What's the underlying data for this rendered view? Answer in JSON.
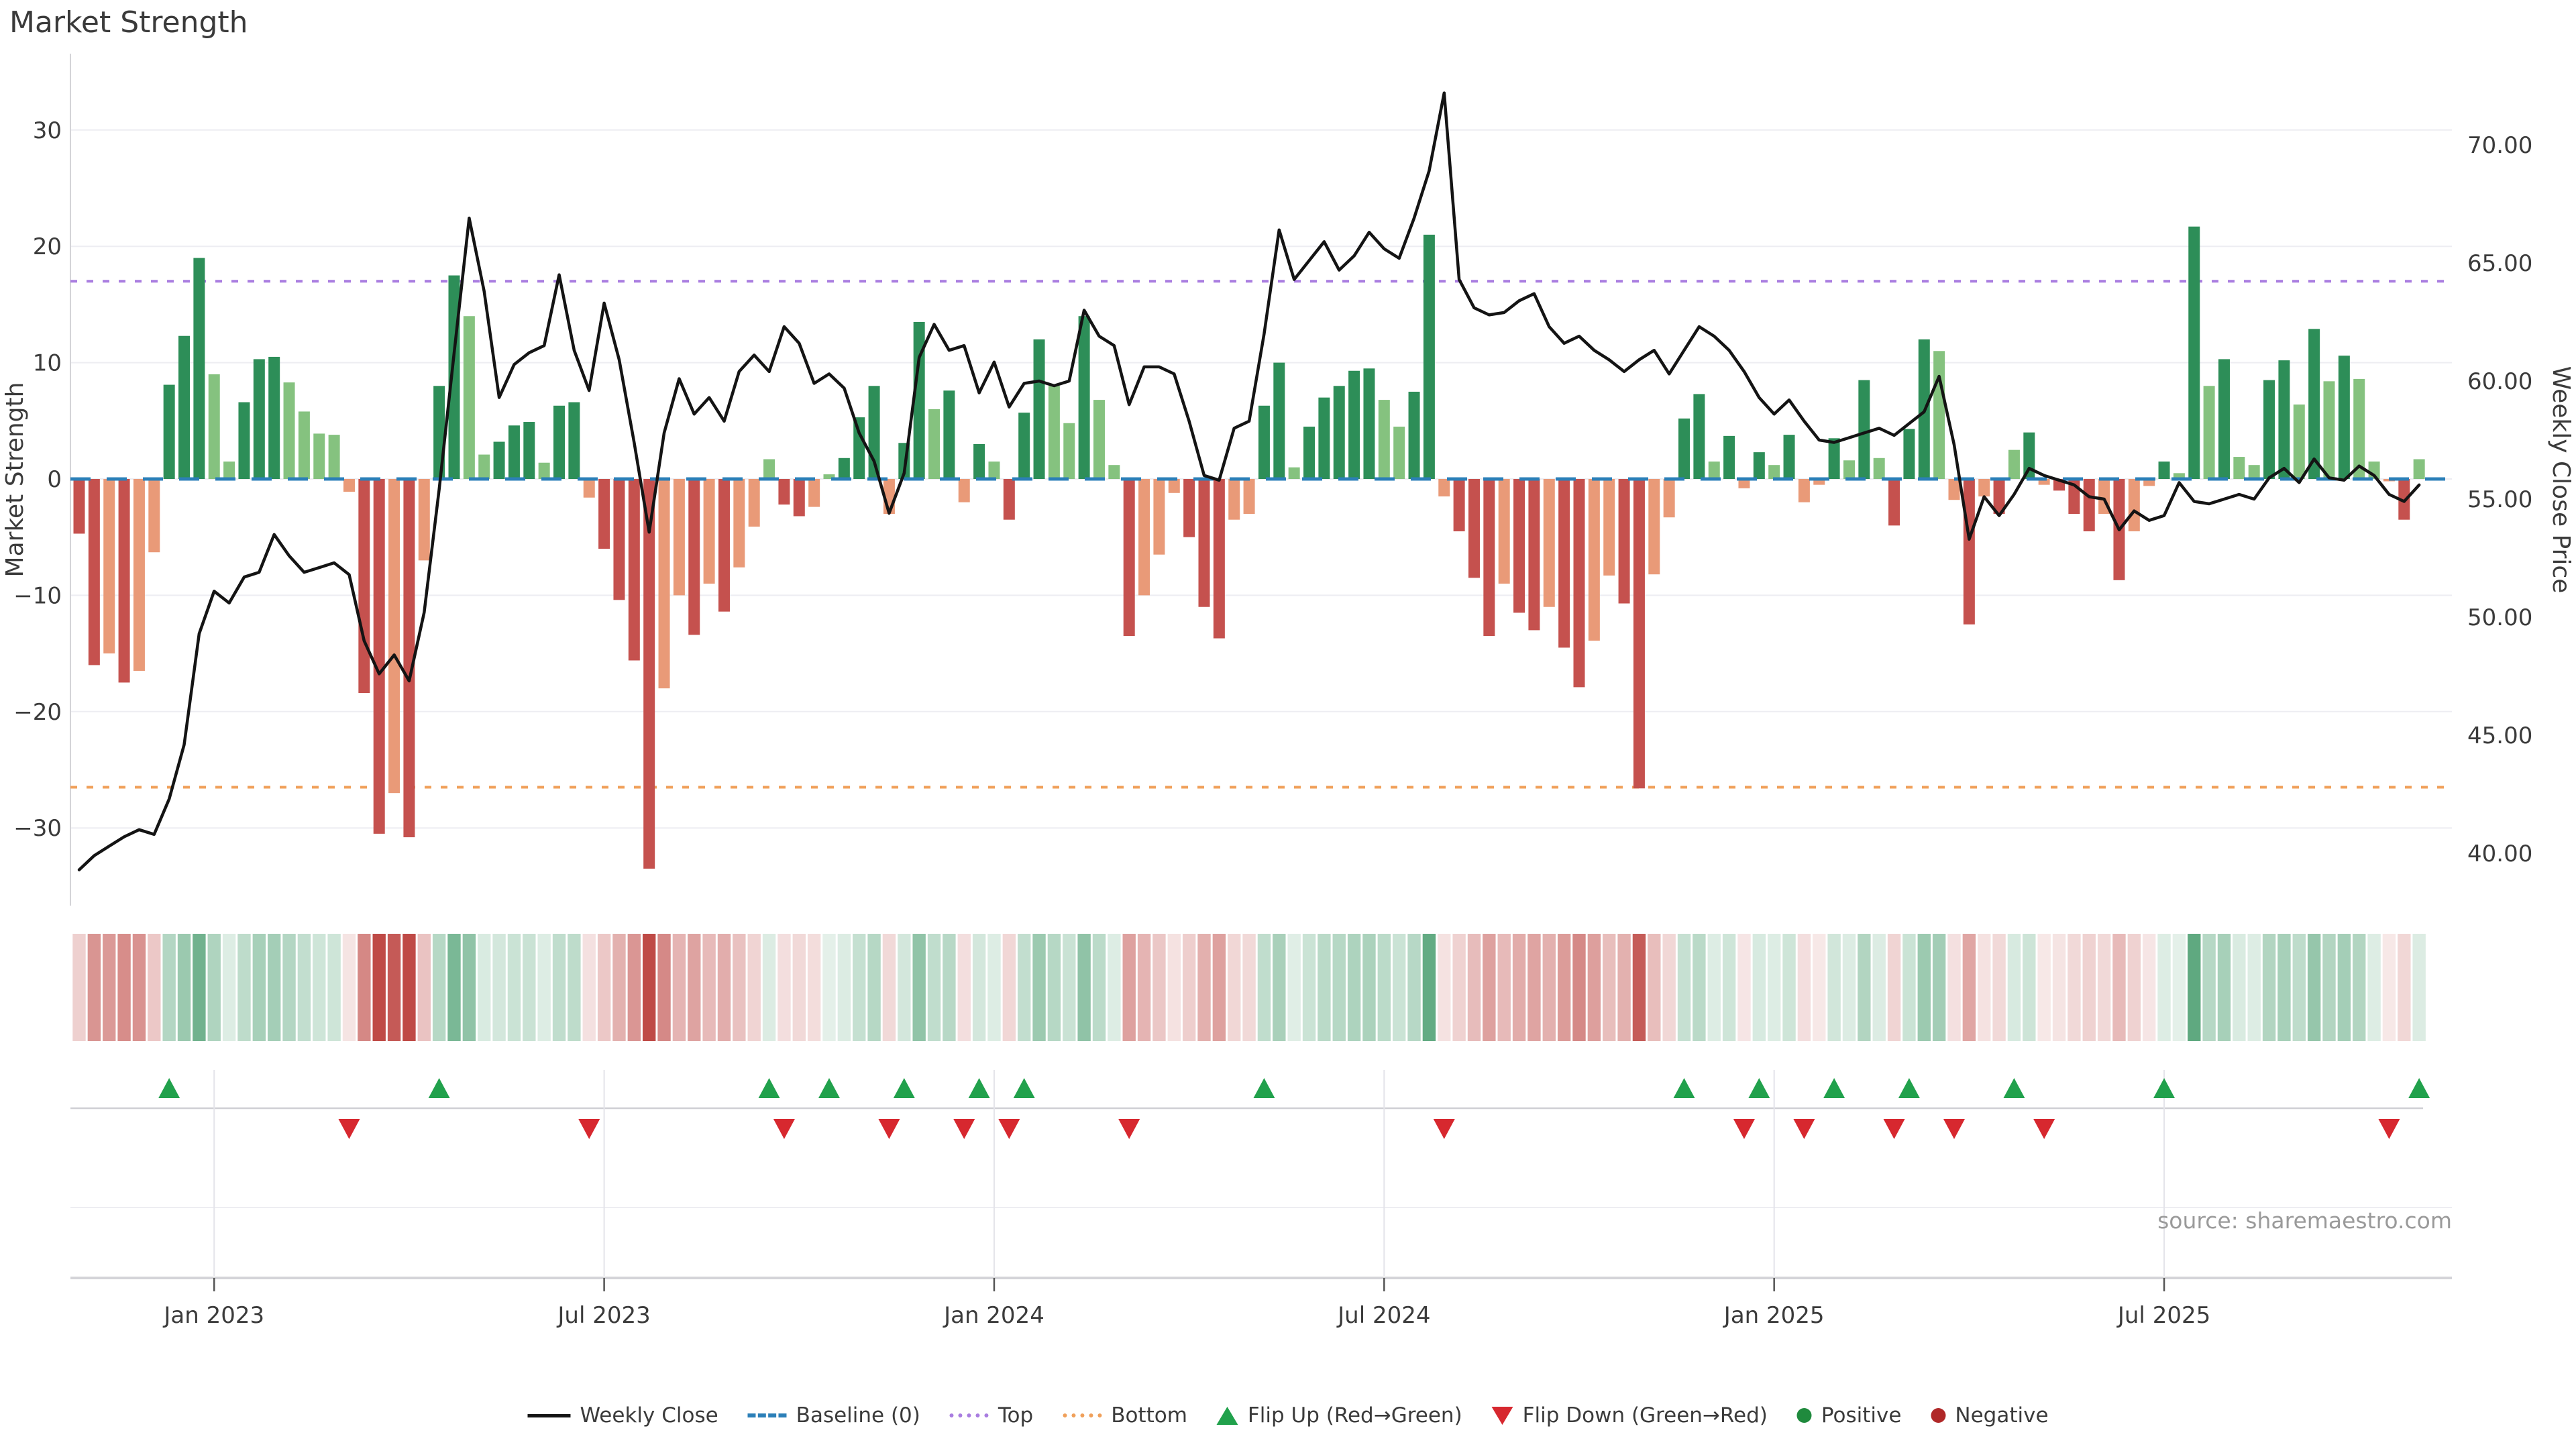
{
  "title": "Market Strength",
  "source": "source: sharemaestro.com",
  "legend": {
    "items": [
      {
        "label": "Weekly Close",
        "swatch": "line",
        "color": "#141414"
      },
      {
        "label": "Baseline (0)",
        "swatch": "dash",
        "color": "#2b7fb8"
      },
      {
        "label": "Top",
        "swatch": "dot-purple",
        "color": "#a97de0"
      },
      {
        "label": "Bottom",
        "swatch": "dot-orange",
        "color": "#f0a05a"
      },
      {
        "label": "Flip Up (Red→Green)",
        "swatch": "tri-up",
        "color": "#21a14c"
      },
      {
        "label": "Flip Down (Green→Red)",
        "swatch": "tri-down",
        "color": "#d7282f"
      },
      {
        "label": "Positive",
        "swatch": "dot-green",
        "color": "#1f8a3d"
      },
      {
        "label": "Negative",
        "swatch": "dot-red",
        "color": "#b02828"
      }
    ]
  },
  "axes": {
    "left": {
      "label": "Market Strength",
      "ticks": [
        {
          "v": 30,
          "label": "30"
        },
        {
          "v": 20,
          "label": "20"
        },
        {
          "v": 10,
          "label": "10"
        },
        {
          "v": 0,
          "label": "0"
        },
        {
          "v": -10,
          "label": "−10"
        },
        {
          "v": -20,
          "label": "−20"
        },
        {
          "v": -30,
          "label": "−30"
        }
      ],
      "range": [
        -36,
        37
      ]
    },
    "right": {
      "label": "Weekly Close Price",
      "ticks": [
        {
          "v": 70,
          "label": "70.00"
        },
        {
          "v": 65,
          "label": "65.00"
        },
        {
          "v": 60,
          "label": "60.00"
        },
        {
          "v": 55,
          "label": "55.00"
        },
        {
          "v": 50,
          "label": "50.00"
        },
        {
          "v": 45,
          "label": "45.00"
        },
        {
          "v": 40,
          "label": "40.00"
        }
      ],
      "range": [
        38.5,
        73.5
      ]
    },
    "x": {
      "ticks": [
        {
          "week": 9,
          "label": "Jan 2023"
        },
        {
          "week": 35,
          "label": "Jul 2023"
        },
        {
          "week": 61,
          "label": "Jan 2024"
        },
        {
          "week": 87,
          "label": "Jul 2024"
        },
        {
          "week": 113,
          "label": "Jan 2025"
        },
        {
          "week": 139,
          "label": "Jul 2025"
        }
      ]
    }
  },
  "colors": {
    "line": "#141414",
    "baseline": "#2b7fb8",
    "top": "#a97de0",
    "bottom": "#f0a05a",
    "flip_up": "#21a14c",
    "flip_down": "#d7282f",
    "positive_dot": "#1f8a3d",
    "negative_dot": "#b02828",
    "bar_pos_strong": "#2d8e58",
    "bar_pos_weak": "#85c27f",
    "bar_neg_strong": "#c5514e",
    "bar_neg_weak": "#e99a78",
    "heat_pos": "#2d8e58",
    "heat_neg": "#bf4a46",
    "grid": "#ededf2",
    "axis": "#d4d4d8",
    "text": "#3b3b3b"
  },
  "chart_data": {
    "type": [
      "bar",
      "line",
      "heatmap"
    ],
    "title": "Market Strength",
    "frequency": "weekly",
    "start_week": "2022-10-31",
    "baseline": 0,
    "top": 17,
    "bottom": -26.5,
    "bar_shade_rule": "dark shade when |value| > |previous value|, light shade otherwise",
    "flip_rule": "flip-up marker where strength crosses from negative to positive; flip-down where it crosses from positive to negative",
    "series": [
      {
        "name": "Market Strength",
        "axis": "left",
        "type": "bar",
        "values": [
          -4.7,
          -16,
          -15,
          -17.5,
          -16.5,
          -6.3,
          8.1,
          12.3,
          19,
          9,
          1.5,
          6.6,
          10.3,
          10.5,
          8.3,
          5.8,
          3.9,
          3.8,
          -1.1,
          -18.4,
          -30.5,
          -27,
          -30.8,
          -7,
          8,
          17.5,
          14,
          2.1,
          3.2,
          4.6,
          4.9,
          1.4,
          6.3,
          6.6,
          -1.6,
          -6,
          -10.4,
          -15.6,
          -33.5,
          -18,
          -10,
          -13.4,
          -9,
          -11.4,
          -7.6,
          -4.1,
          1.7,
          -2.2,
          -3.2,
          -2.4,
          0.4,
          1.8,
          5.3,
          8,
          -3,
          3.1,
          13.5,
          6,
          7.6,
          -2,
          3,
          1.5,
          -3.5,
          5.7,
          12,
          8,
          4.8,
          14,
          6.8,
          1.2,
          -13.5,
          -10,
          -6.5,
          -1.2,
          -5,
          -11,
          -13.7,
          -3.5,
          -3,
          6.3,
          10,
          1,
          4.5,
          7,
          8,
          9.3,
          9.5,
          6.8,
          4.5,
          7.5,
          21,
          -1.5,
          -4.5,
          -8.5,
          -13.5,
          -9,
          -11.5,
          -13,
          -11,
          -14.5,
          -17.9,
          -13.9,
          -8.3,
          -10.7,
          -26.6,
          -8.2,
          -3.3,
          5.2,
          7.3,
          1.5,
          3.7,
          -0.8,
          2.3,
          1.2,
          3.8,
          -2,
          -0.5,
          3.5,
          1.6,
          8.5,
          1.8,
          -4,
          4.3,
          12,
          11,
          -1.8,
          -12.5,
          -1.5,
          -3,
          2.5,
          4,
          -0.5,
          -1,
          -3,
          -4.5,
          -3,
          -8.7,
          -4.5,
          -0.6,
          1.5,
          0.5,
          21.7,
          8,
          10.3,
          1.9,
          1.2,
          8.5,
          10.2,
          6.4,
          12.9,
          8.4,
          10.6,
          8.6,
          1.5,
          -0.2,
          -3.5,
          1.7
        ]
      },
      {
        "name": "Weekly Close",
        "axis": "right",
        "type": "line",
        "values": [
          39.3,
          39.9,
          40.3,
          40.7,
          41.0,
          40.8,
          42.3,
          44.6,
          49.3,
          51.1,
          50.6,
          51.7,
          51.9,
          53.5,
          52.6,
          51.9,
          52.1,
          52.3,
          51.8,
          49.0,
          47.6,
          48.4,
          47.3,
          50.2,
          55.4,
          61.2,
          66.9,
          63.8,
          59.3,
          60.7,
          61.2,
          61.5,
          64.5,
          61.3,
          59.6,
          63.3,
          60.9,
          57.4,
          53.6,
          57.8,
          60.1,
          58.6,
          59.3,
          58.3,
          60.4,
          61.1,
          60.4,
          62.3,
          61.6,
          59.9,
          60.3,
          59.7,
          57.8,
          56.6,
          54.4,
          56.1,
          61.0,
          62.4,
          61.3,
          61.5,
          59.5,
          60.8,
          58.9,
          59.9,
          60.0,
          59.8,
          60.0,
          63.0,
          61.9,
          61.5,
          59.0,
          60.6,
          60.6,
          60.3,
          58.3,
          56.0,
          55.8,
          58.0,
          58.3,
          62.0,
          66.4,
          64.3,
          65.1,
          65.9,
          64.7,
          65.3,
          66.3,
          65.6,
          65.2,
          66.9,
          68.9,
          72.2,
          64.3,
          63.1,
          62.8,
          62.9,
          63.4,
          63.7,
          62.3,
          61.6,
          61.9,
          61.3,
          60.9,
          60.4,
          60.9,
          61.3,
          60.3,
          61.3,
          62.3,
          61.9,
          61.3,
          60.4,
          59.3,
          58.6,
          59.2,
          58.3,
          57.5,
          57.4,
          57.6,
          57.8,
          58.0,
          57.7,
          58.2,
          58.7,
          60.2,
          57.3,
          53.3,
          55.1,
          54.3,
          55.2,
          56.3,
          56.0,
          55.8,
          55.6,
          55.1,
          55.0,
          53.7,
          54.5,
          54.1,
          54.3,
          55.7,
          54.9,
          54.8,
          55.0,
          55.2,
          55.0,
          55.9,
          56.3,
          55.7,
          56.7,
          55.9,
          55.8,
          56.4,
          56.0,
          55.2,
          54.9,
          55.6
        ]
      }
    ],
    "xlabel": "",
    "ylabel_left": "Market Strength",
    "ylabel_right": "Weekly Close Price",
    "legend_position": "bottom-center",
    "grid": true
  }
}
